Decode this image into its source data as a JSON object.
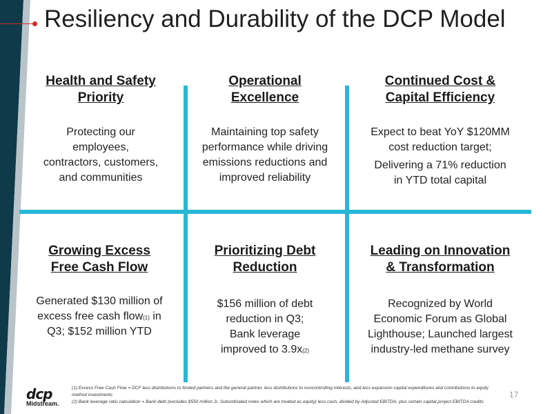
{
  "title": "Resiliency and Durability of the DCP Model",
  "colors": {
    "accent": "#29b6d6",
    "brand_dark": "#0e3a4a",
    "brand_red": "#d12a2a"
  },
  "cells": [
    {
      "heading_l1": "Health and Safety",
      "heading_l2": "Priority",
      "body_lines": [
        "Protecting our",
        "employees,",
        "contractors, customers,",
        "and communities"
      ]
    },
    {
      "heading_l1": "Operational",
      "heading_l2": "Excellence",
      "body_lines": [
        "Maintaining top safety",
        "performance while driving",
        "emissions reductions and",
        "improved reliability"
      ]
    },
    {
      "heading_l1": "Continued Cost &",
      "heading_l2": "Capital Efficiency",
      "body_lines": [
        "Expect to beat YoY $120MM",
        "cost reduction target;",
        "Delivering a 71% reduction",
        "in YTD total capital"
      ]
    },
    {
      "heading_l1": "Growing Excess",
      "heading_l2": "Free Cash Flow",
      "body_l1": "Generated $130 million of",
      "body_l2a": "excess free cash flow",
      "body_l2_sup": "(1)",
      "body_l2b": " in",
      "body_l3": "Q3; $152 million YTD"
    },
    {
      "heading_l1": "Prioritizing Debt",
      "heading_l2": "Reduction",
      "body_l1": "$156 million of debt",
      "body_l2": "reduction in Q3;",
      "body_l3": "Bank leverage",
      "body_l4a": "improved to 3.9x",
      "body_l4_sup": "(2)"
    },
    {
      "heading_l1": "Leading on Innovation",
      "heading_l2": "& Transformation",
      "body_lines": [
        "Recognized by World",
        "Economic Forum as Global",
        "Lighthouse; Launched largest",
        "industry-led methane survey"
      ]
    }
  ],
  "footnotes": [
    "(1)    Excess Free Cash Flow = DCF less distributions to limited partners and the general partner, less distributions to noncontrolling interests, and less expansion capital expenditures and contributions to equity method investments",
    "(2)    Bank leverage ratio calculation = Bank debt (excludes $550 million Jr. Subordinated notes which are treated as equity) less cash, divided by Adjusted EBITDA, plus certain capital project EBITDA credits"
  ],
  "logo": {
    "mark": "dcp",
    "sub": "Midstream."
  },
  "page_number": "17"
}
